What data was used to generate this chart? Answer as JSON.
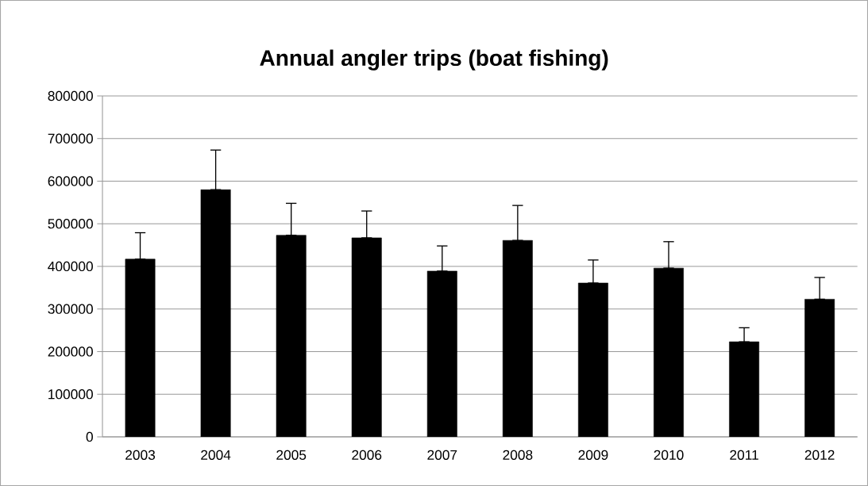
{
  "chart_data": {
    "type": "bar",
    "title": "Annual angler trips (boat fishing)",
    "categories": [
      "2003",
      "2004",
      "2005",
      "2006",
      "2007",
      "2008",
      "2009",
      "2010",
      "2011",
      "2012"
    ],
    "values": [
      417000,
      580000,
      473000,
      467000,
      389000,
      461000,
      361000,
      396000,
      223000,
      323000
    ],
    "errors": [
      [
        417000,
        479000
      ],
      [
        580000,
        673000
      ],
      [
        473000,
        548000
      ],
      [
        467000,
        530000
      ],
      [
        389000,
        448000
      ],
      [
        461000,
        543000
      ],
      [
        361000,
        415000
      ],
      [
        396000,
        458000
      ],
      [
        223000,
        256000
      ],
      [
        323000,
        374000
      ]
    ],
    "color": "#000000",
    "ylim": [
      0,
      800000
    ],
    "yticks": [
      0,
      100000,
      200000,
      300000,
      400000,
      500000,
      600000,
      700000,
      800000
    ],
    "grid": "y"
  }
}
